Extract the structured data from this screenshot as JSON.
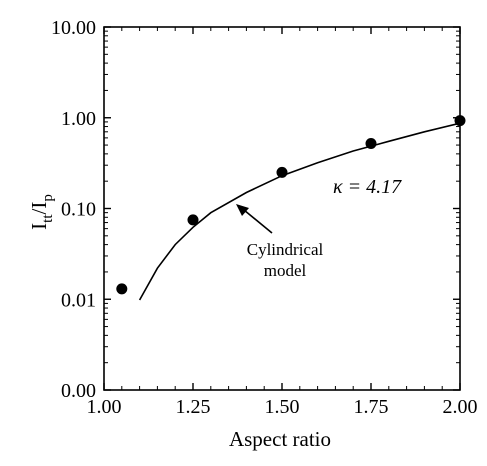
{
  "chart_data": {
    "type": "scatter",
    "title": "",
    "xlabel": "Aspect ratio",
    "ylabel_main": "I",
    "ylabel_sub1": "tt",
    "ylabel_mid": "/I",
    "ylabel_sub2": "p",
    "x_ticks": [
      1.0,
      1.25,
      1.5,
      1.75,
      2.0
    ],
    "x_tick_labels": [
      "1.00",
      "1.25",
      "1.50",
      "1.75",
      "2.00"
    ],
    "y_ticks": [
      0.001,
      0.01,
      0.1,
      1.0,
      10.0
    ],
    "y_tick_labels": [
      "0.00",
      "0.01",
      "0.10",
      "1.00",
      "10.00"
    ],
    "xlim": [
      1.0,
      2.0
    ],
    "ylim": [
      0.001,
      10.0
    ],
    "y_scale": "log",
    "grid": false,
    "series": [
      {
        "kind": "points",
        "x": [
          1.05,
          1.25,
          1.5,
          1.75,
          2.0
        ],
        "y": [
          0.013,
          0.075,
          0.25,
          0.52,
          0.93
        ]
      },
      {
        "kind": "line",
        "x": [
          1.1,
          1.15,
          1.2,
          1.25,
          1.3,
          1.4,
          1.5,
          1.6,
          1.7,
          1.8,
          1.9,
          2.0
        ],
        "y": [
          0.0098,
          0.022,
          0.04,
          0.062,
          0.09,
          0.15,
          0.23,
          0.32,
          0.43,
          0.55,
          0.7,
          0.87
        ]
      }
    ],
    "annotations": {
      "model_label_line1": "Cylindrical",
      "model_label_line2": "model",
      "kappa_label": "κ = 4.17"
    }
  }
}
